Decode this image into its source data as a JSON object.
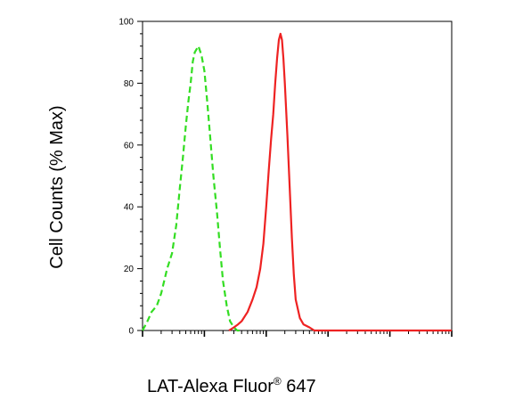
{
  "chart_data": {
    "type": "line",
    "title": "",
    "xlabel": "LAT-Alexa Fluor",
    "xlabel_superscript": "®",
    "xlabel_suffix": " 647",
    "ylabel": "Cell Counts (% Max)",
    "x_scale": "log",
    "xlim": [
      0.1,
      10000
    ],
    "ylim": [
      0,
      100
    ],
    "y_ticks": [
      0,
      20,
      40,
      60,
      80,
      100
    ],
    "y_tick_labels": [
      "0",
      "20",
      "40",
      "60",
      "80",
      "100"
    ],
    "grid": false,
    "legend": "none",
    "series": [
      {
        "color": "#33dd22",
        "style": "dashed",
        "x": [
          0.1,
          0.12,
          0.14,
          0.17,
          0.2,
          0.25,
          0.3,
          0.35,
          0.4,
          0.45,
          0.5,
          0.55,
          0.6,
          0.65,
          0.7,
          0.8,
          0.9,
          1.0,
          1.1,
          1.25,
          1.4,
          1.6,
          1.8,
          2.0,
          2.3,
          2.6,
          3.0,
          3.4,
          4.0
        ],
        "y": [
          0,
          3,
          6,
          8,
          12,
          20,
          25,
          34,
          46,
          56,
          66,
          74,
          80,
          87,
          90,
          92,
          89,
          84,
          75,
          62,
          50,
          38,
          26,
          16,
          8,
          3,
          1,
          0,
          0
        ]
      },
      {
        "color": "#ee2222",
        "style": "solid",
        "x": [
          2.5,
          3,
          3.5,
          4,
          5,
          6,
          7,
          8,
          9,
          10,
          11,
          12,
          13,
          14,
          15,
          16,
          17,
          18,
          19,
          20,
          22,
          24,
          26,
          28,
          30,
          35,
          40,
          50,
          60,
          100,
          300,
          1000,
          10000
        ],
        "y": [
          0,
          1,
          2,
          3,
          6,
          10,
          14,
          20,
          28,
          40,
          52,
          62,
          70,
          80,
          88,
          94,
          96,
          94,
          88,
          80,
          63,
          46,
          30,
          18,
          10,
          4,
          2,
          1,
          0,
          0,
          0,
          0,
          0
        ]
      }
    ]
  }
}
